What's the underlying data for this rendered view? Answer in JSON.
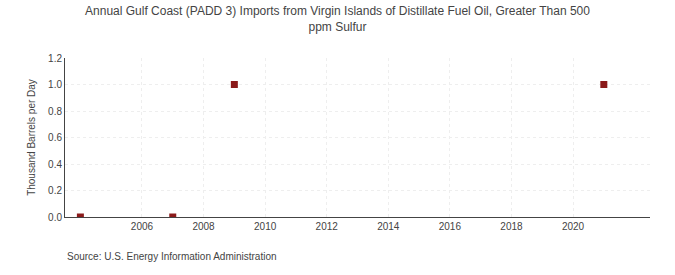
{
  "chart_data": {
    "type": "scatter",
    "title": "Annual Gulf Coast (PADD 3) Imports from Virgin Islands of Distillate Fuel Oil, Greater Than 500\nppm Sulfur",
    "ylabel": "Thousand Barrels per Day",
    "annotations": [
      "Source: U.S. Energy Information Administration"
    ],
    "x": [
      2004,
      2007,
      2009,
      2021
    ],
    "values": [
      0.0,
      0.0,
      1.0,
      1.0
    ],
    "color": "#8b1a1a",
    "marker": "square",
    "xlim": [
      2003.5,
      2022.5
    ],
    "ylim": [
      0.0,
      1.2
    ],
    "xticks": [
      2006,
      2008,
      2010,
      2012,
      2014,
      2016,
      2018,
      2020
    ],
    "yticks": [
      {
        "value": 0.0,
        "label": "0.0"
      },
      0.2,
      0.4,
      0.6,
      0.8,
      {
        "value": 1.0,
        "label": "1.0"
      },
      1.2
    ],
    "grid": true
  }
}
